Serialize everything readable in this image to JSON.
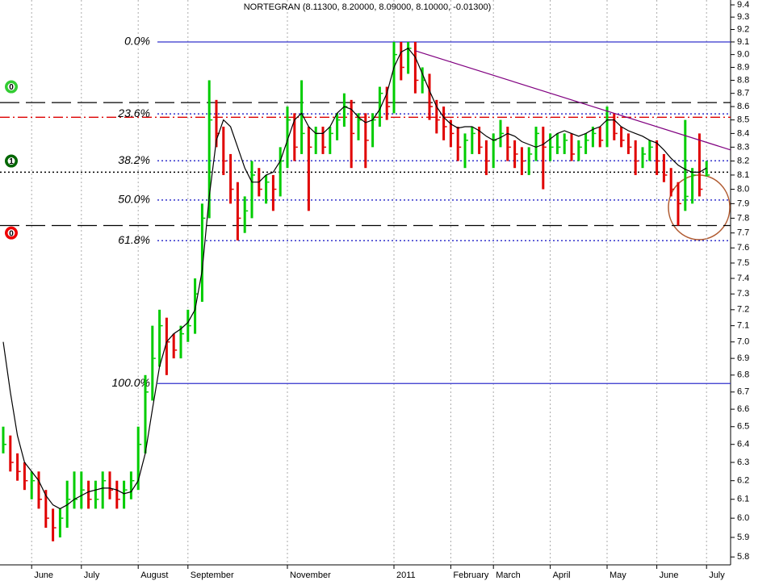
{
  "chart_data": {
    "type": "ohlc",
    "title": "NORTEGRAN (8.11300, 8.20000, 8.09000, 8.10000, -0.01300)",
    "categories": [
      null,
      null,
      null,
      null,
      "June",
      null,
      null,
      null,
      null,
      null,
      null,
      "July",
      null,
      null,
      null,
      null,
      null,
      null,
      null,
      "August",
      null,
      null,
      null,
      null,
      null,
      null,
      "September",
      null,
      null,
      null,
      null,
      null,
      null,
      null,
      null,
      null,
      null,
      null,
      null,
      null,
      "November",
      null,
      null,
      null,
      null,
      null,
      null,
      null,
      null,
      null,
      null,
      null,
      null,
      null,
      null,
      "2011",
      null,
      null,
      null,
      null,
      null,
      null,
      null,
      "February",
      null,
      null,
      null,
      null,
      null,
      "March",
      null,
      null,
      null,
      null,
      null,
      null,
      null,
      "April",
      null,
      null,
      null,
      null,
      null,
      null,
      null,
      "May",
      null,
      null,
      null,
      null,
      null,
      null,
      "June",
      null,
      null,
      null,
      null,
      null,
      null,
      "July"
    ],
    "high": [
      6.5,
      6.45,
      6.35,
      6.3,
      6.25,
      6.25,
      6.15,
      6.05,
      6.05,
      6.2,
      6.25,
      6.25,
      6.2,
      6.2,
      6.25,
      6.25,
      6.2,
      6.2,
      6.25,
      6.5,
      6.8,
      7.1,
      7.2,
      7.15,
      7.05,
      7.1,
      7.2,
      7.4,
      7.9,
      8.8,
      8.65,
      8.45,
      8.25,
      8.05,
      7.95,
      8.2,
      8.15,
      8.1,
      8.1,
      8.3,
      8.6,
      8.55,
      8.8,
      8.45,
      8.45,
      8.45,
      8.45,
      8.55,
      8.7,
      8.65,
      8.55,
      8.55,
      8.55,
      8.75,
      8.75,
      9.1,
      9.1,
      9.1,
      9.1,
      8.9,
      8.85,
      8.65,
      8.6,
      8.5,
      8.45,
      8.4,
      8.45,
      8.45,
      8.35,
      8.4,
      8.5,
      8.45,
      8.35,
      8.3,
      8.3,
      8.45,
      8.45,
      8.4,
      8.4,
      8.4,
      8.4,
      8.35,
      8.4,
      8.45,
      8.45,
      8.6,
      8.55,
      8.45,
      8.4,
      8.35,
      8.3,
      8.35,
      8.35,
      8.25,
      8.15,
      8.05,
      8.5,
      8.15,
      8.4,
      8.2
    ],
    "low": [
      6.35,
      6.25,
      6.2,
      6.15,
      6.1,
      6.05,
      5.95,
      5.88,
      5.9,
      5.95,
      6.05,
      6.05,
      6.05,
      6.05,
      6.05,
      6.1,
      6.05,
      6.05,
      6.1,
      6.15,
      6.35,
      6.65,
      6.85,
      6.8,
      6.9,
      6.9,
      7.0,
      7.05,
      7.25,
      7.8,
      8.3,
      8.1,
      7.9,
      7.65,
      7.7,
      7.8,
      7.95,
      7.9,
      7.85,
      7.95,
      8.15,
      8.2,
      8.25,
      7.85,
      8.25,
      8.25,
      8.25,
      8.35,
      8.45,
      8.15,
      8.35,
      8.15,
      8.3,
      8.45,
      8.5,
      8.55,
      8.8,
      8.85,
      8.7,
      8.7,
      8.5,
      8.4,
      8.35,
      8.3,
      8.2,
      8.15,
      8.25,
      8.25,
      8.1,
      8.15,
      8.3,
      8.2,
      8.15,
      8.1,
      8.1,
      8.2,
      8.0,
      8.2,
      8.25,
      8.25,
      8.2,
      8.2,
      8.25,
      8.3,
      8.3,
      8.3,
      8.35,
      8.3,
      8.25,
      8.1,
      8.15,
      8.2,
      8.1,
      8.05,
      7.95,
      7.75,
      7.85,
      7.9,
      7.95,
      8.09
    ],
    "close": [
      6.4,
      6.3,
      6.25,
      6.2,
      6.2,
      6.1,
      6.0,
      5.95,
      6.0,
      6.1,
      6.1,
      6.15,
      6.1,
      6.1,
      6.2,
      6.15,
      6.1,
      6.15,
      6.2,
      6.4,
      6.7,
      6.9,
      7.1,
      7.0,
      6.95,
      7.05,
      7.1,
      7.3,
      7.8,
      8.5,
      8.4,
      8.2,
      8.0,
      7.8,
      7.85,
      8.1,
      8.0,
      8.05,
      8.0,
      8.2,
      8.5,
      8.3,
      8.4,
      8.3,
      8.4,
      8.3,
      8.4,
      8.5,
      8.6,
      8.4,
      8.5,
      8.35,
      8.5,
      8.7,
      8.6,
      9.0,
      8.9,
      9.05,
      8.8,
      8.8,
      8.6,
      8.5,
      8.45,
      8.4,
      8.3,
      8.35,
      8.4,
      8.3,
      8.2,
      8.35,
      8.4,
      8.3,
      8.25,
      8.2,
      8.25,
      8.4,
      8.3,
      8.3,
      8.3,
      8.35,
      8.25,
      8.3,
      8.35,
      8.4,
      8.35,
      8.5,
      8.4,
      8.35,
      8.3,
      8.2,
      8.25,
      8.3,
      8.2,
      8.1,
      8.0,
      7.9,
      7.95,
      8.1,
      8.0,
      8.1
    ],
    "up_color": "#00cc00",
    "down_color": "#e00000",
    "ma": {
      "color": "#000000",
      "values": [
        7.0,
        6.7,
        6.45,
        6.3,
        6.25,
        6.2,
        6.12,
        6.07,
        6.05,
        6.07,
        6.1,
        6.12,
        6.14,
        6.15,
        6.16,
        6.16,
        6.15,
        6.13,
        6.14,
        6.2,
        6.35,
        6.6,
        6.85,
        7.0,
        7.05,
        7.08,
        7.12,
        7.2,
        7.45,
        7.95,
        8.35,
        8.5,
        8.45,
        8.3,
        8.15,
        8.05,
        8.05,
        8.1,
        8.12,
        8.2,
        8.35,
        8.5,
        8.55,
        8.45,
        8.4,
        8.4,
        8.45,
        8.55,
        8.6,
        8.58,
        8.52,
        8.48,
        8.5,
        8.58,
        8.7,
        8.9,
        9.02,
        9.05,
        8.98,
        8.85,
        8.72,
        8.6,
        8.52,
        8.47,
        8.44,
        8.45,
        8.45,
        8.42,
        8.38,
        8.35,
        8.37,
        8.4,
        8.38,
        8.34,
        8.32,
        8.3,
        8.32,
        8.36,
        8.4,
        8.42,
        8.4,
        8.38,
        8.4,
        8.43,
        8.45,
        8.5,
        8.5,
        8.45,
        8.42,
        8.4,
        8.38,
        8.35,
        8.33,
        8.28,
        8.22,
        8.17,
        8.14,
        8.12,
        8.12,
        8.15
      ]
    },
    "log_scale": true,
    "ylim": [
      5.76,
      9.44
    ],
    "yticks": [
      5.8,
      5.9,
      {
        "value": 6,
        "label": "6.0"
      },
      6.1,
      6.2,
      6.3,
      6.4,
      6.5,
      6.6,
      6.7,
      6.8,
      6.9,
      {
        "value": 7,
        "label": "7.0"
      },
      7.1,
      7.2,
      7.3,
      7.4,
      7.5,
      7.6,
      7.7,
      7.8,
      7.9,
      {
        "value": 8,
        "label": "8.0"
      },
      8.1,
      8.2,
      8.3,
      8.4,
      8.5,
      8.6,
      8.7,
      8.8,
      8.9,
      {
        "value": 9,
        "label": "9.0"
      },
      9.1,
      9.2,
      9.3,
      9.4
    ],
    "xgrid": true,
    "fib_color": "#3333cc",
    "fib_levels": [
      {
        "label": "0.0%",
        "value": 9.1,
        "style": "solid"
      },
      {
        "label": "23.6%",
        "value": 8.545,
        "style": "dotted"
      },
      {
        "label": "38.2%",
        "value": 8.202,
        "style": "dotted"
      },
      {
        "label": "50.0%",
        "value": 7.925,
        "style": "dotted"
      },
      {
        "label": "61.8%",
        "value": 7.648,
        "style": "dotted"
      },
      {
        "label": "100.0%",
        "value": 6.75,
        "style": "solid"
      }
    ],
    "lines": [
      {
        "value": 8.63,
        "color": "#000000",
        "style": "dashed"
      },
      {
        "value": 8.52,
        "color": "#dd0000",
        "style": "dashdot"
      },
      {
        "value": 8.12,
        "color": "#000000",
        "style": "dotted"
      },
      {
        "value": 7.75,
        "color": "#000000",
        "style": "dashed"
      }
    ],
    "trendline": {
      "color": "#800080",
      "values": [
        9.03,
        8.28
      ]
    },
    "markers": [
      {
        "label": "0",
        "value": 8.75,
        "color": "#33cc33"
      },
      {
        "label": "1",
        "value": 8.2,
        "color": "#006600"
      },
      {
        "label": "0",
        "value": 7.7,
        "color": "#ee0000"
      }
    ]
  }
}
